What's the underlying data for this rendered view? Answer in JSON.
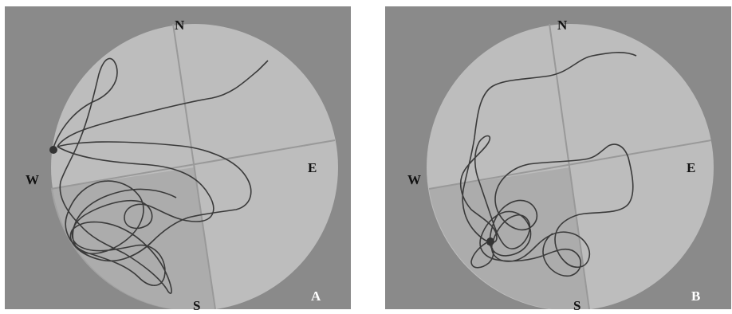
{
  "panels": [
    {
      "id": "A",
      "label": "A",
      "compass": {
        "north": "N",
        "south": "S",
        "east": "E",
        "west": "W"
      }
    },
    {
      "id": "B",
      "label": "B",
      "compass": {
        "north": "N",
        "south": "S",
        "east": "E",
        "west": "W"
      }
    }
  ],
  "colors": {
    "background": "#8a8a8a",
    "pool_light": "#bdbdbd",
    "pool_quadrant_dark": "#a8a8a8",
    "axis": "#9a9a9a",
    "path": "#3a3a3a"
  }
}
